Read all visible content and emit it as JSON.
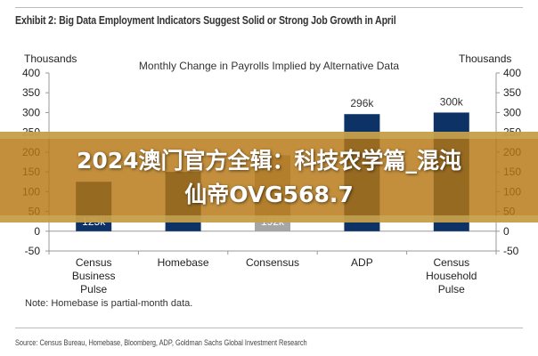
{
  "header": {
    "exhibit_title": "Exhibit 2: Big Data Employment Indicators Suggest Solid or Strong Job Growth in April"
  },
  "chart_data": {
    "type": "bar",
    "title": "Monthly Change in Payrolls Implied by Alternative Data",
    "ylabel_left": "Thousands",
    "ylabel_right": "Thousands",
    "ylim": [
      -50,
      400
    ],
    "yticks": [
      -50,
      0,
      50,
      100,
      150,
      200,
      250,
      300,
      350,
      400
    ],
    "categories": [
      [
        "Census",
        "Business",
        "Pulse"
      ],
      [
        "Homebase"
      ],
      [
        "Consensus"
      ],
      [
        "ADP"
      ],
      [
        "Census",
        "Household",
        "Pulse"
      ]
    ],
    "values": [
      125,
      150,
      192,
      296,
      300
    ],
    "data_labels": [
      "125k",
      "",
      "192k",
      "296k",
      "300k"
    ],
    "colors": [
      "#0d3366",
      "#0d3366",
      "#a6a6a6",
      "#0d3366",
      "#0d3366"
    ],
    "grid": false,
    "legend": "none"
  },
  "note": "Note: Homebase is partial-month data.",
  "source": "Source: Census Bureau, Homebase, Bloomberg, ADP, Goldman Sachs Global Investment Research",
  "overlay": {
    "line1": "2024澳门官方全辑：科技农学篇_混沌",
    "line2": "仙帝OVG568.7",
    "color": "#b67612"
  }
}
